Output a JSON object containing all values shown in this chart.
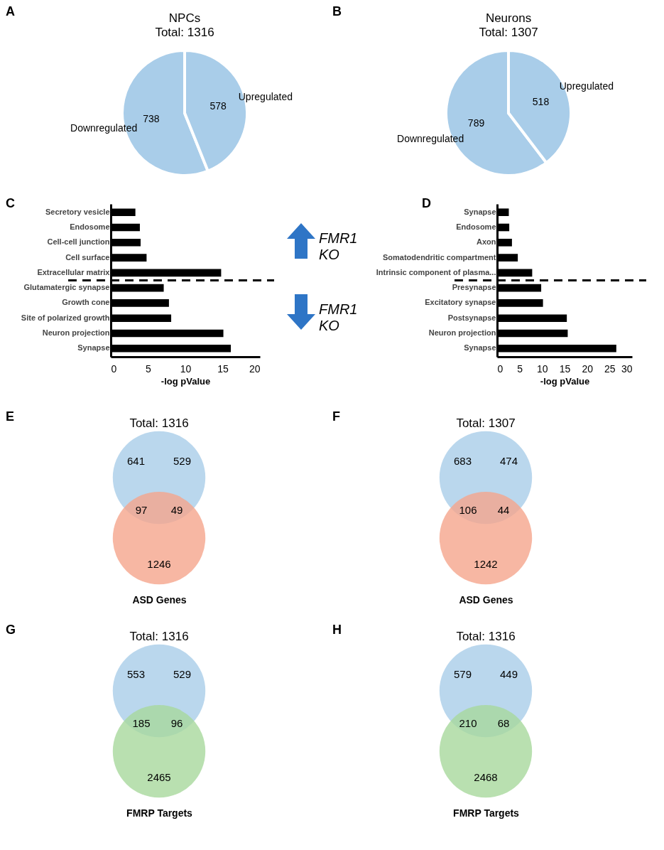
{
  "chart_data": [
    {
      "type": "pie",
      "title": "NPCs",
      "subtitle": "Total: 1316",
      "annotations": [
        "A"
      ],
      "categories": [
        "Downregulated",
        "Upregulated"
      ],
      "values": [
        738,
        578
      ],
      "colors": [
        "#a9cde9",
        "#a9cde9"
      ],
      "data_labels": true
    },
    {
      "type": "pie",
      "title": "Neurons",
      "subtitle": "Total: 1307",
      "annotations": [
        "B"
      ],
      "categories": [
        "Downregulated",
        "Upregulated"
      ],
      "values": [
        789,
        518
      ],
      "colors": [
        "#a9cde9",
        "#a9cde9"
      ],
      "data_labels": true
    },
    {
      "type": "bar",
      "orientation": "horizontal",
      "annotations": [
        "C",
        "FMR1 KO",
        "FMR1 KO"
      ],
      "xlabel": "-log pValue",
      "categories": [
        "Secretory vesicle",
        "Endosome",
        "Cell-cell junction",
        "Cell surface",
        "Extracellular matrix",
        "Glutamatergic synapse",
        "Growth cone",
        "Site of polarized growth",
        "Neuron projection",
        "Synapse"
      ],
      "values": [
        3.3,
        3.9,
        4.0,
        4.8,
        14.8,
        7.1,
        7.8,
        8.1,
        15.1,
        16.1
      ],
      "color": "#000000",
      "xlim": [
        0,
        20
      ],
      "xticks": [
        0,
        5,
        10,
        15,
        20
      ]
    },
    {
      "type": "bar",
      "orientation": "horizontal",
      "annotations": [
        "D"
      ],
      "xlabel": "-log pValue",
      "categories": [
        "Synapse",
        "Endosome",
        "Axon",
        "Somatodendritic compartment",
        "Intrinsic component of plasma...",
        "Presynapse",
        "Excitatory synapse",
        "Postsynapse",
        "Neuron projection",
        "Synapse"
      ],
      "values": [
        2.6,
        2.7,
        3.3,
        4.6,
        7.8,
        9.8,
        10.2,
        15.5,
        15.7,
        26.5
      ],
      "color": "#000000",
      "xlim": [
        0,
        30
      ],
      "xticks": [
        0,
        5,
        10,
        15,
        20,
        25,
        30
      ]
    },
    {
      "type": "other",
      "title": "Total: 1316",
      "xlabel": "ASD Genes",
      "annotations": [
        "E",
        "641",
        "529",
        "97",
        "49",
        "1246"
      ],
      "colors": [
        "#a9cde9",
        "#f5a58c"
      ]
    },
    {
      "type": "other",
      "title": "Total: 1307",
      "xlabel": "ASD Genes",
      "annotations": [
        "F",
        "683",
        "474",
        "106",
        "44",
        "1242"
      ],
      "colors": [
        "#a9cde9",
        "#f5a58c"
      ]
    },
    {
      "type": "other",
      "title": "Total: 1316",
      "xlabel": "FMRP Targets",
      "annotations": [
        "G",
        "553",
        "529",
        "185",
        "96",
        "2465"
      ],
      "colors": [
        "#a9cde9",
        "#a8d89c"
      ]
    },
    {
      "type": "other",
      "title": "Total: 1316",
      "xlabel": "FMRP Targets",
      "annotations": [
        "H",
        "579",
        "449",
        "210",
        "68",
        "2468"
      ],
      "colors": [
        "#a9cde9",
        "#a8d89c"
      ]
    }
  ]
}
